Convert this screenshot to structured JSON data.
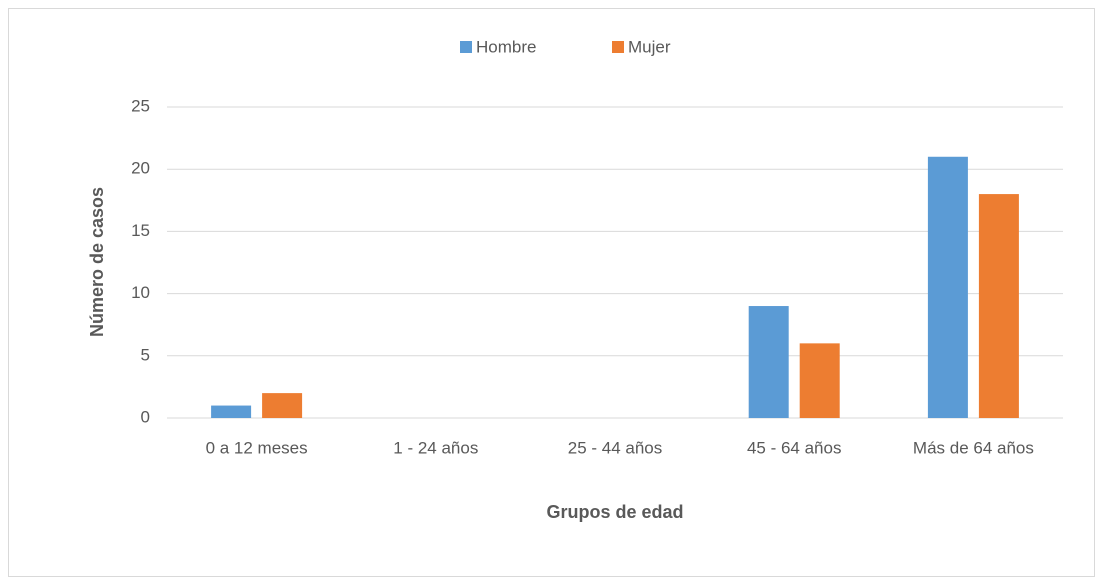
{
  "chart_data": {
    "type": "bar",
    "categories": [
      "0 a 12 meses",
      "1 - 24 años",
      "25 - 44 años",
      "45 - 64 años",
      "Más de 64 años"
    ],
    "series": [
      {
        "name": "Hombre",
        "color": "#5b9bd5",
        "values": [
          1,
          0,
          0,
          9,
          21
        ]
      },
      {
        "name": "Mujer",
        "color": "#ed7d31",
        "values": [
          2,
          0,
          0,
          6,
          18
        ]
      }
    ],
    "x_label": "Grupos de edad",
    "y_label": "Número de casos",
    "ylim": [
      0,
      25
    ],
    "yticks": [
      0,
      5,
      10,
      15,
      20,
      25
    ],
    "grid": true,
    "legend": "top"
  }
}
